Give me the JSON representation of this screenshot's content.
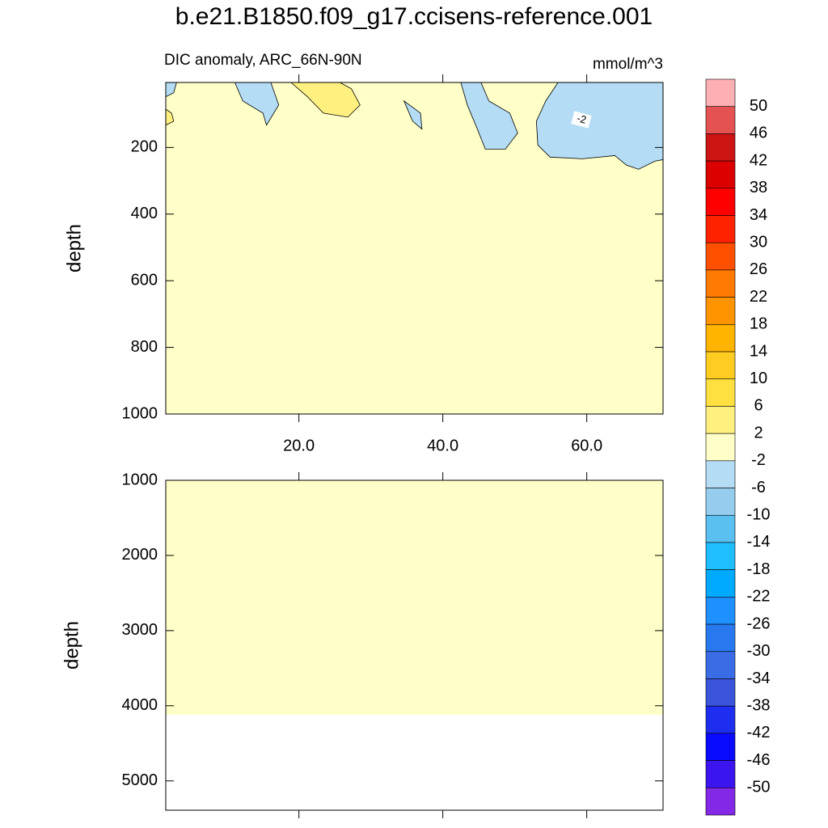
{
  "chart_data": [
    {
      "type": "contour",
      "title": "b.e21.B1850.f09_g17.ccisens-reference.001",
      "subtitle": "DIC anomaly, ARC_66N-90N",
      "units": "mmol/m^3",
      "ylabel": "depth",
      "y_reversed": true,
      "xlim": [
        1.5,
        70.6
      ],
      "xticks": [
        {
          "value": 20,
          "label": "20.0"
        },
        {
          "value": 40,
          "label": "40.0"
        },
        {
          "value": 60,
          "label": "60.0"
        }
      ],
      "ylim": [
        5,
        1000
      ],
      "yticks": [
        200,
        400,
        600,
        800,
        1000
      ],
      "contour_label": -2,
      "regions": [
        {
          "color": "#ffffc8",
          "outline": false,
          "x": [
            1.5,
            70.6,
            70.6,
            1.5
          ],
          "y": [
            5,
            5,
            1000,
            1000
          ]
        },
        {
          "color": "#b4dcf5",
          "outline": true,
          "x": [
            56.0,
            54.3,
            53.0,
            53.2,
            54.9,
            59.4,
            63.9,
            65.5,
            67.2,
            69.5,
            70.6,
            70.6
          ],
          "y": [
            5,
            60.5,
            121,
            193,
            229,
            234,
            224.5,
            253,
            265.5,
            241,
            236.6,
            5
          ]
        },
        {
          "color": "#b4dcf5",
          "outline": true,
          "x": [
            42.5,
            43.4,
            44.8,
            45.9,
            48.7,
            50.4,
            49.3,
            46.4,
            45.3
          ],
          "y": [
            5,
            72.5,
            145,
            205,
            205,
            157,
            97,
            60.5,
            5
          ]
        },
        {
          "color": "#b4dcf5",
          "outline": true,
          "x": [
            11.1,
            12.2,
            15.0,
            15.5,
            17.2,
            16.1
          ],
          "y": [
            5,
            60.5,
            97,
            133,
            72.5,
            5
          ]
        },
        {
          "color": "#b4dcf5",
          "outline": true,
          "x": [
            34.6,
            35.8,
            37.1,
            36.9
          ],
          "y": [
            60.5,
            121,
            145,
            97
          ]
        },
        {
          "color": "#b4dcf5",
          "outline": true,
          "x": [
            1.5,
            1.5,
            2.6,
            3.0
          ],
          "y": [
            5,
            48,
            36,
            5
          ]
        },
        {
          "color": "#fff080",
          "outline": true,
          "x": [
            18.9,
            21.2,
            23.4,
            26.8,
            28.5,
            27.3,
            25.7
          ],
          "y": [
            5,
            48,
            97,
            109,
            72.5,
            24,
            5
          ]
        },
        {
          "color": "#fff080",
          "outline": true,
          "x": [
            1.5,
            2.3,
            2.6,
            1.5
          ],
          "y": [
            85,
            97,
            121,
            133
          ]
        }
      ],
      "colorbar": {
        "levels": [
          50,
          46,
          42,
          38,
          34,
          30,
          26,
          22,
          18,
          14,
          10,
          6,
          2,
          -2,
          -6,
          -10,
          -14,
          -18,
          -22,
          -26,
          -30,
          -34,
          -38,
          -42,
          -46,
          -50
        ],
        "colors": [
          "#fdb0b4",
          "#e55252",
          "#cc1414",
          "#dc0000",
          "#ff0000",
          "#ff2200",
          "#ff5000",
          "#ff7a00",
          "#ff9400",
          "#ffb400",
          "#ffcc22",
          "#ffe040",
          "#fff080",
          "#ffffc8",
          "#b4dcf5",
          "#96cdef",
          "#5ac0f0",
          "#1ebeff",
          "#00aaff",
          "#1e90ff",
          "#2878f0",
          "#3a6ce6",
          "#3a55dc",
          "#1e2ef0",
          "#0a0aff",
          "#3c14f0",
          "#8228e6"
        ]
      }
    },
    {
      "type": "contour",
      "ylabel": "depth",
      "y_reversed": true,
      "xlim": [
        1.5,
        70.6
      ],
      "xticks": [
        20,
        40,
        60
      ],
      "xtick_labels": false,
      "ylim": [
        1000,
        5390
      ],
      "yticks": [
        1000,
        2000,
        3000,
        4000,
        5000
      ],
      "regions": [
        {
          "color": "#ffffc8",
          "outline": false,
          "x": [
            1.5,
            70.6,
            70.6,
            1.5
          ],
          "y": [
            1000,
            1000,
            4120,
            4120
          ]
        }
      ]
    }
  ]
}
